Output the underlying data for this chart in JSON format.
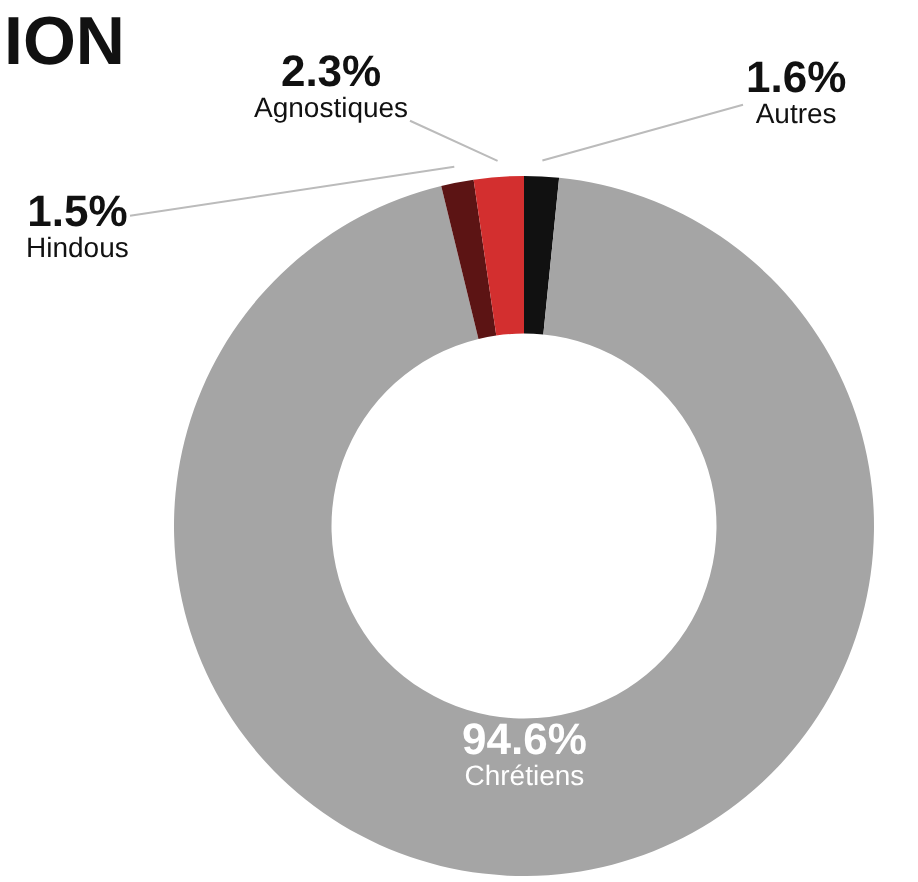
{
  "chart_data": {
    "type": "donut",
    "title": "ION",
    "categories": [
      "Autres",
      "Chrétiens",
      "Hindous",
      "Agnostiques"
    ],
    "values": [
      1.6,
      94.6,
      1.5,
      2.3
    ],
    "colors": [
      "#111111",
      "#a5a5a5",
      "#5c1414",
      "#d32f2f"
    ],
    "value_labels": [
      "1.6%",
      "94.6%",
      "1.5%",
      "2.3%"
    ],
    "legend": false
  }
}
